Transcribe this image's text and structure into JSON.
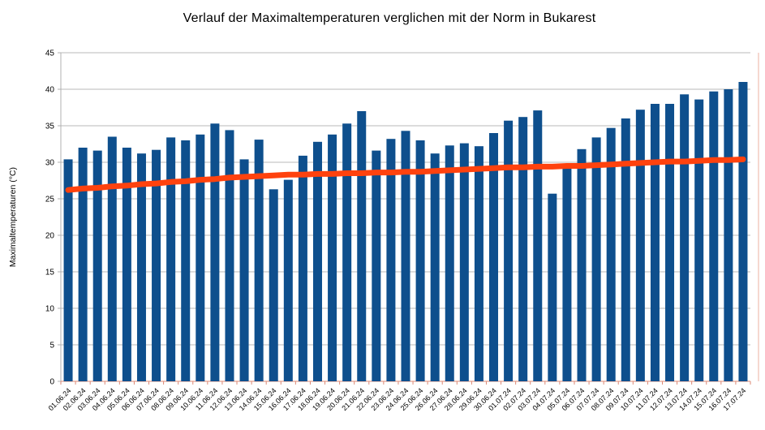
{
  "chart_data": {
    "type": "bar",
    "title": "Verlauf der Maximaltemperaturen verglichen mit der Norm in Bukarest",
    "xlabel": "",
    "ylabel": "Maximaltemperaturen (°C)",
    "ylim": [
      0,
      45
    ],
    "yticks": [
      "0",
      "5",
      "10",
      "15",
      "20",
      "25",
      "30",
      "35",
      "40",
      "45"
    ],
    "grid": true,
    "legend_position": "none",
    "categories": [
      "01.06.24",
      "02.06.24",
      "03.06.24",
      "04.06.24",
      "05.06.24",
      "06.06.24",
      "07.06.24",
      "08.06.24",
      "09.06.24",
      "10.06.24",
      "11.06.24",
      "12.06.24",
      "13.06.24",
      "14.06.24",
      "15.06.24",
      "16.06.24",
      "17.06.24",
      "18.06.24",
      "19.06.24",
      "20.06.24",
      "21.06.24",
      "22.06.24",
      "23.06.24",
      "24.06.24",
      "25.06.24",
      "26.06.24",
      "27.06.24",
      "28.06.24",
      "29.06.24",
      "30.06.24",
      "01.07.24",
      "02.07.24",
      "03.07.24",
      "04.07.24",
      "05.07.24",
      "06.07.24",
      "07.07.24",
      "08.07.24",
      "09.07.24",
      "10.07.24",
      "11.07.24",
      "12.07.24",
      "13.07.24",
      "14.07.24",
      "15.07.24",
      "16.07.24",
      "17.07.24"
    ],
    "series": [
      {
        "name": "Maximaltemperaturen",
        "type": "bar",
        "color": "#0e4f8d",
        "values": [
          30.4,
          32.0,
          31.6,
          33.5,
          32.0,
          31.2,
          31.7,
          33.4,
          33.0,
          33.8,
          35.3,
          34.4,
          30.4,
          33.1,
          26.3,
          27.6,
          30.9,
          32.8,
          33.8,
          35.3,
          37.0,
          31.6,
          33.2,
          34.3,
          33.0,
          31.2,
          32.3,
          32.6,
          32.2,
          34.0,
          35.7,
          36.2,
          37.1,
          25.7,
          29.2,
          31.8,
          33.4,
          34.7,
          36.0,
          37.2,
          38.0,
          38.0,
          39.3,
          38.6,
          39.7,
          40.0,
          41.0
        ]
      },
      {
        "name": "Norm",
        "type": "line",
        "color": "#ff420e",
        "values": [
          26.2,
          26.4,
          26.5,
          26.7,
          26.8,
          27.0,
          27.1,
          27.3,
          27.4,
          27.6,
          27.7,
          27.9,
          28.0,
          28.1,
          28.2,
          28.3,
          28.3,
          28.4,
          28.4,
          28.5,
          28.5,
          28.6,
          28.6,
          28.7,
          28.7,
          28.8,
          28.9,
          29.0,
          29.1,
          29.2,
          29.3,
          29.3,
          29.4,
          29.4,
          29.5,
          29.5,
          29.6,
          29.7,
          29.8,
          29.9,
          30.0,
          30.1,
          30.1,
          30.2,
          30.3,
          30.3,
          30.4
        ]
      }
    ],
    "colors": {
      "bar": "#0e4f8d",
      "norm_line": "#ff420e",
      "gridline": "#b8b8b8",
      "y_axis": "#b0b0b0",
      "x_axis": "#dd8a76",
      "text": "#000000",
      "background": "#ffffff"
    }
  }
}
